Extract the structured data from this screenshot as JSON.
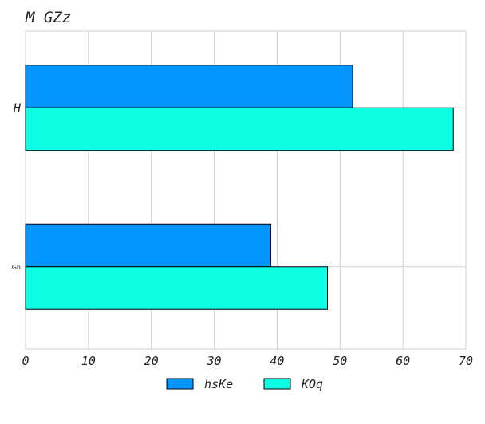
{
  "chart_data": {
    "type": "bar",
    "orientation": "horizontal",
    "title": "M  GZz",
    "xlabel": "",
    "ylabel": "",
    "categories": [
      "H",
      "Gh"
    ],
    "series": [
      {
        "name": "hsKe",
        "values": [
          52,
          39
        ],
        "color": "#0496ff"
      },
      {
        "name": "KOq",
        "values": [
          68,
          48
        ],
        "color": "#0dffe3"
      }
    ],
    "xlim": [
      0,
      70
    ],
    "xticks": [
      "0",
      "10",
      "20",
      "30",
      "40",
      "50",
      "60",
      "70"
    ],
    "grid": true,
    "legend_position": "bottom-center"
  }
}
